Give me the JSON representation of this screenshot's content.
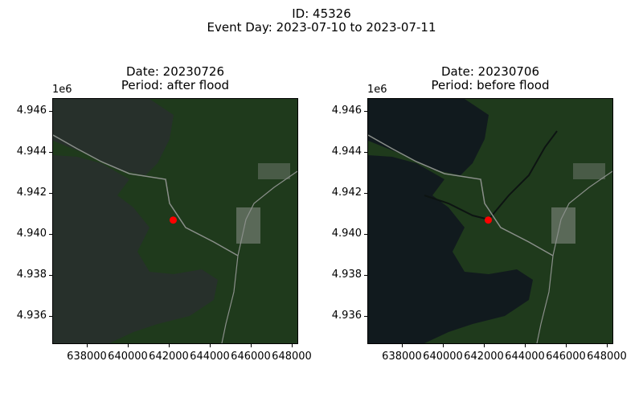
{
  "figure": {
    "id_line": "ID: 45326",
    "event_line": "Event Day: 2023-07-10 to 2023-07-11"
  },
  "panels": [
    {
      "date_line": "Date: 20230726",
      "period_line": "Period: after flood",
      "offset_label": "1e6"
    },
    {
      "date_line": "Date: 20230706",
      "period_line": "Period: before flood",
      "offset_label": "1e6"
    }
  ],
  "axes": {
    "y_ticks": [
      "4.946",
      "4.944",
      "4.942",
      "4.940",
      "4.938",
      "4.936"
    ],
    "x_ticks": [
      "638000",
      "640000",
      "642000",
      "644000",
      "646000",
      "648000"
    ]
  },
  "marker": {
    "color": "#ff0000",
    "x": 642200,
    "y": 4940650
  },
  "colors": {
    "water_after": "#27302b",
    "water_before": "#111a1e",
    "land": "#1f3a1c",
    "land_dark": "#17301a",
    "urban": "#8a8f8a"
  }
}
